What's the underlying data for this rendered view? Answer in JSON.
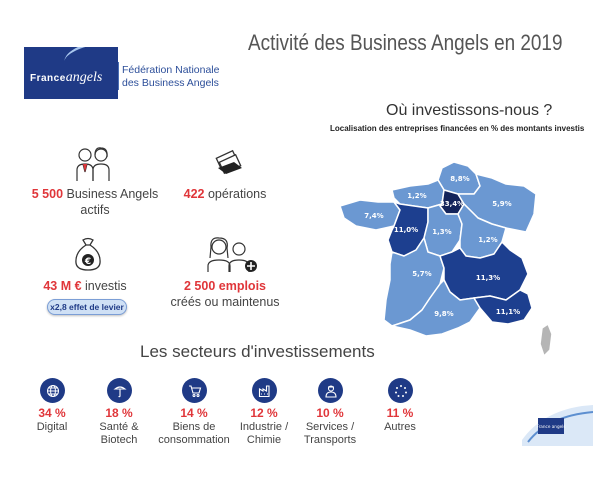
{
  "header": {
    "logo_word_1": "France",
    "logo_word_2": "angels",
    "federation": "Fédération Nationale\ndes Business Angels",
    "title": "Activité des Business Angels en 2019"
  },
  "stats": {
    "angels_num": "5 500",
    "angels_label": " Business Angels",
    "angels_label_2": "actifs",
    "operations_num": "422",
    "operations_label": " opérations",
    "invest_num": "43 M €",
    "invest_label": " investis",
    "lever_label": "x2,8 effet de levier",
    "jobs_num": "2 500 emplois",
    "jobs_label": "créés ou maintenus"
  },
  "map": {
    "title": "Où investissons-nous ?",
    "subtitle": "Localisation des entreprises financées en %  des montants investis",
    "regions": [
      {
        "name": "Hauts-de-France",
        "value": "8,8%"
      },
      {
        "name": "Normandie",
        "value": "1,2%"
      },
      {
        "name": "Ile-de-France",
        "value": "33,4%"
      },
      {
        "name": "Grand Est",
        "value": "5,9%"
      },
      {
        "name": "Bretagne",
        "value": "7,4%"
      },
      {
        "name": "Pays de la Loire",
        "value": "11,0%"
      },
      {
        "name": "Centre-Val de Loire",
        "value": "1,3%"
      },
      {
        "name": "Bourgogne-Franche-Comté",
        "value": "1,2%"
      },
      {
        "name": "Nouvelle-Aquitaine",
        "value": "5,7%"
      },
      {
        "name": "Auvergne-Rhône-Alpes",
        "value": "11,3%"
      },
      {
        "name": "Occitanie",
        "value": "9,8%"
      },
      {
        "name": "Provence-Alpes-Côte d'Azur",
        "value": "11,1%"
      }
    ],
    "colors": {
      "light": "#6b98d2",
      "mid": "#3a5fb0",
      "dark": "#1d3f8f",
      "darkest": "#14245a",
      "corsica": "#b5b5b5"
    }
  },
  "sectors": {
    "title": "Les secteurs d'investissements",
    "items": [
      {
        "pct": "34 %",
        "label": "Digital",
        "icon": "globe-icon"
      },
      {
        "pct": "18 %",
        "label": "Santé &\nBiotech",
        "icon": "health-icon"
      },
      {
        "pct": "14 %",
        "label": "Biens de\nconsommation",
        "icon": "cart-icon"
      },
      {
        "pct": "12 %",
        "label": "Industrie /\nChimie",
        "icon": "factory-icon"
      },
      {
        "pct": "10 %",
        "label": "Services /\nTransports",
        "icon": "service-icon"
      },
      {
        "pct": "11 %",
        "label": "Autres",
        "icon": "dots-icon"
      }
    ]
  },
  "corner": {
    "logo_text": "France angels"
  }
}
